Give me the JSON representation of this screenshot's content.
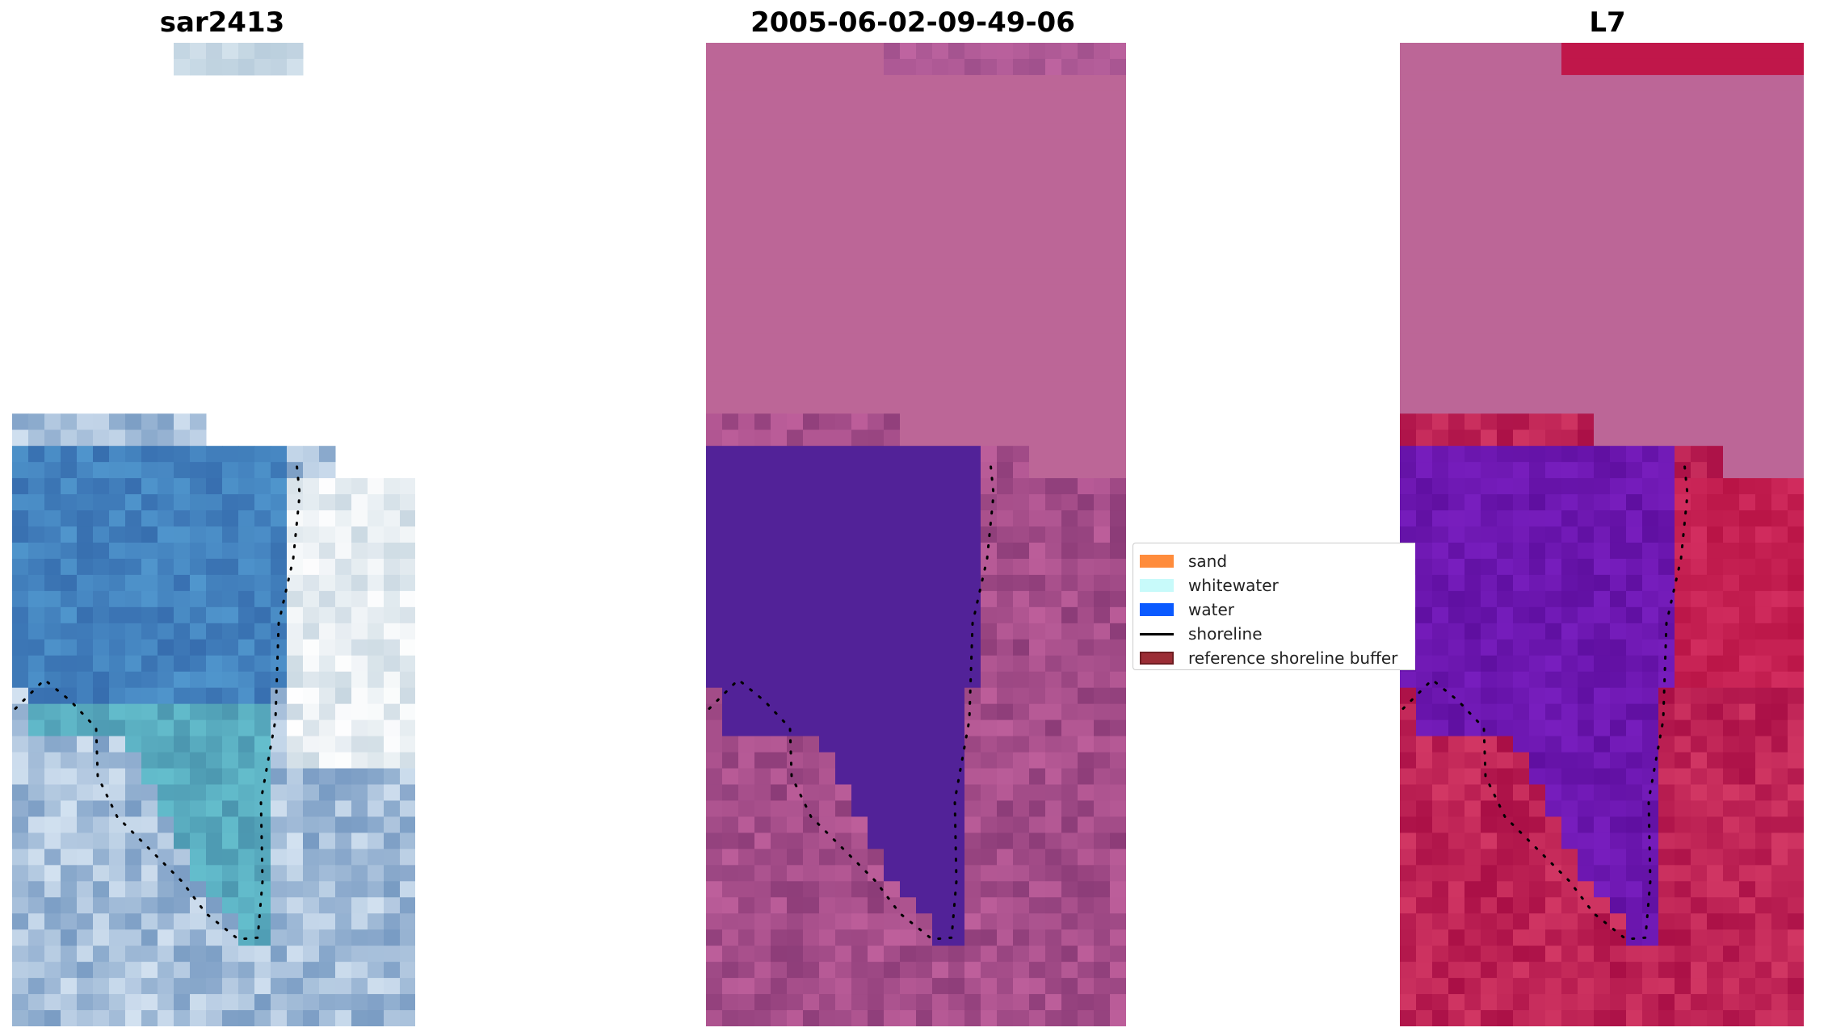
{
  "panels": [
    {
      "title": "sar2413",
      "kind": "rgb"
    },
    {
      "title": "2005-06-02-09-49-06",
      "kind": "classified"
    },
    {
      "title": "L7",
      "kind": "index"
    }
  ],
  "legend": {
    "items": [
      {
        "label": "sand",
        "type": "patch",
        "color": "#ff8c3c"
      },
      {
        "label": "whitewater",
        "type": "patch",
        "color": "#c8fafa"
      },
      {
        "label": "water",
        "type": "patch",
        "color": "#0a5aff"
      },
      {
        "label": "shoreline",
        "type": "line",
        "color": "#000000"
      },
      {
        "label": "reference shoreline buffer",
        "type": "patch",
        "color": "#9b2d35",
        "edge": "#6e1e22"
      }
    ]
  },
  "colors": {
    "nodata_overlay": "#bc6697",
    "classified_water": "#522298",
    "index_red": "#c0174a",
    "index_purple": "#6a13a8",
    "shoreline": "#000000"
  }
}
